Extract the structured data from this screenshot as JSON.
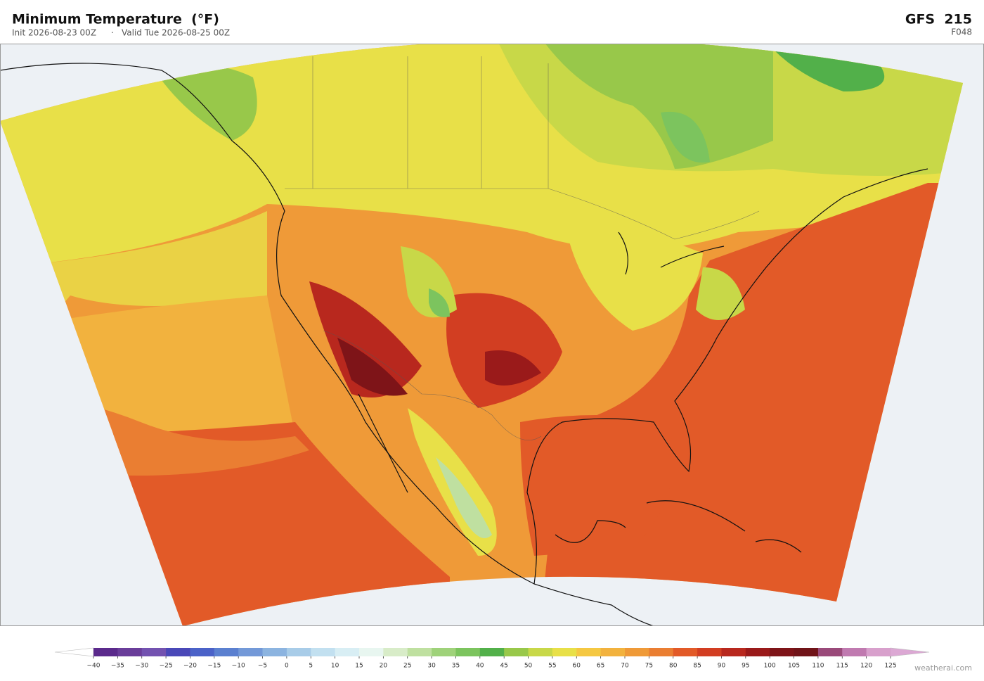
{
  "header": {
    "title": "Minimum Temperature  (°F)",
    "init": "Init 2026-08-23 00Z",
    "separator": "·",
    "valid": "Valid Tue 2026-08-25 00Z",
    "model": "GFS  215",
    "forecast": "F048"
  },
  "colorbar": {
    "ticks": [
      {
        "value": -40,
        "label": "−40"
      },
      {
        "value": -35,
        "label": "−35"
      },
      {
        "value": -30,
        "label": "−30"
      },
      {
        "value": -25,
        "label": "−25"
      },
      {
        "value": -20,
        "label": "−20"
      },
      {
        "value": -15,
        "label": "−15"
      },
      {
        "value": -10,
        "label": "−10"
      },
      {
        "value": -5,
        "label": "−5"
      },
      0,
      5,
      10,
      15,
      20,
      25,
      30,
      35,
      40,
      45,
      50,
      55,
      60,
      65,
      70,
      75,
      80,
      85,
      90,
      95,
      100,
      105,
      110,
      115,
      120,
      125
    ],
    "colors": [
      "#5b2a8c",
      "#6a3d9a",
      "#7352b0",
      "#4a48b8",
      "#4b62c8",
      "#5b80d0",
      "#7399d8",
      "#8cb4e0",
      "#a8cce8",
      "#c2e0f0",
      "#d8eef4",
      "#e8f6f0",
      "#d8ecc8",
      "#bfe0a0",
      "#9fd27a",
      "#7cc45e",
      "#52b04a",
      "#98c84a",
      "#c8d848",
      "#e8e048",
      "#f5c842",
      "#f2b23e",
      "#ef9a38",
      "#ea7e32",
      "#e25a28",
      "#d23e22",
      "#b8281e",
      "#9a1a1a",
      "#7e1418",
      "#701418",
      "#9a4a7a",
      "#c07ab0",
      "#d8a0cc"
    ],
    "under_color": "#ffffff",
    "over_color": "#dca8d4"
  },
  "footer": {
    "credit": "weatherai.com"
  }
}
